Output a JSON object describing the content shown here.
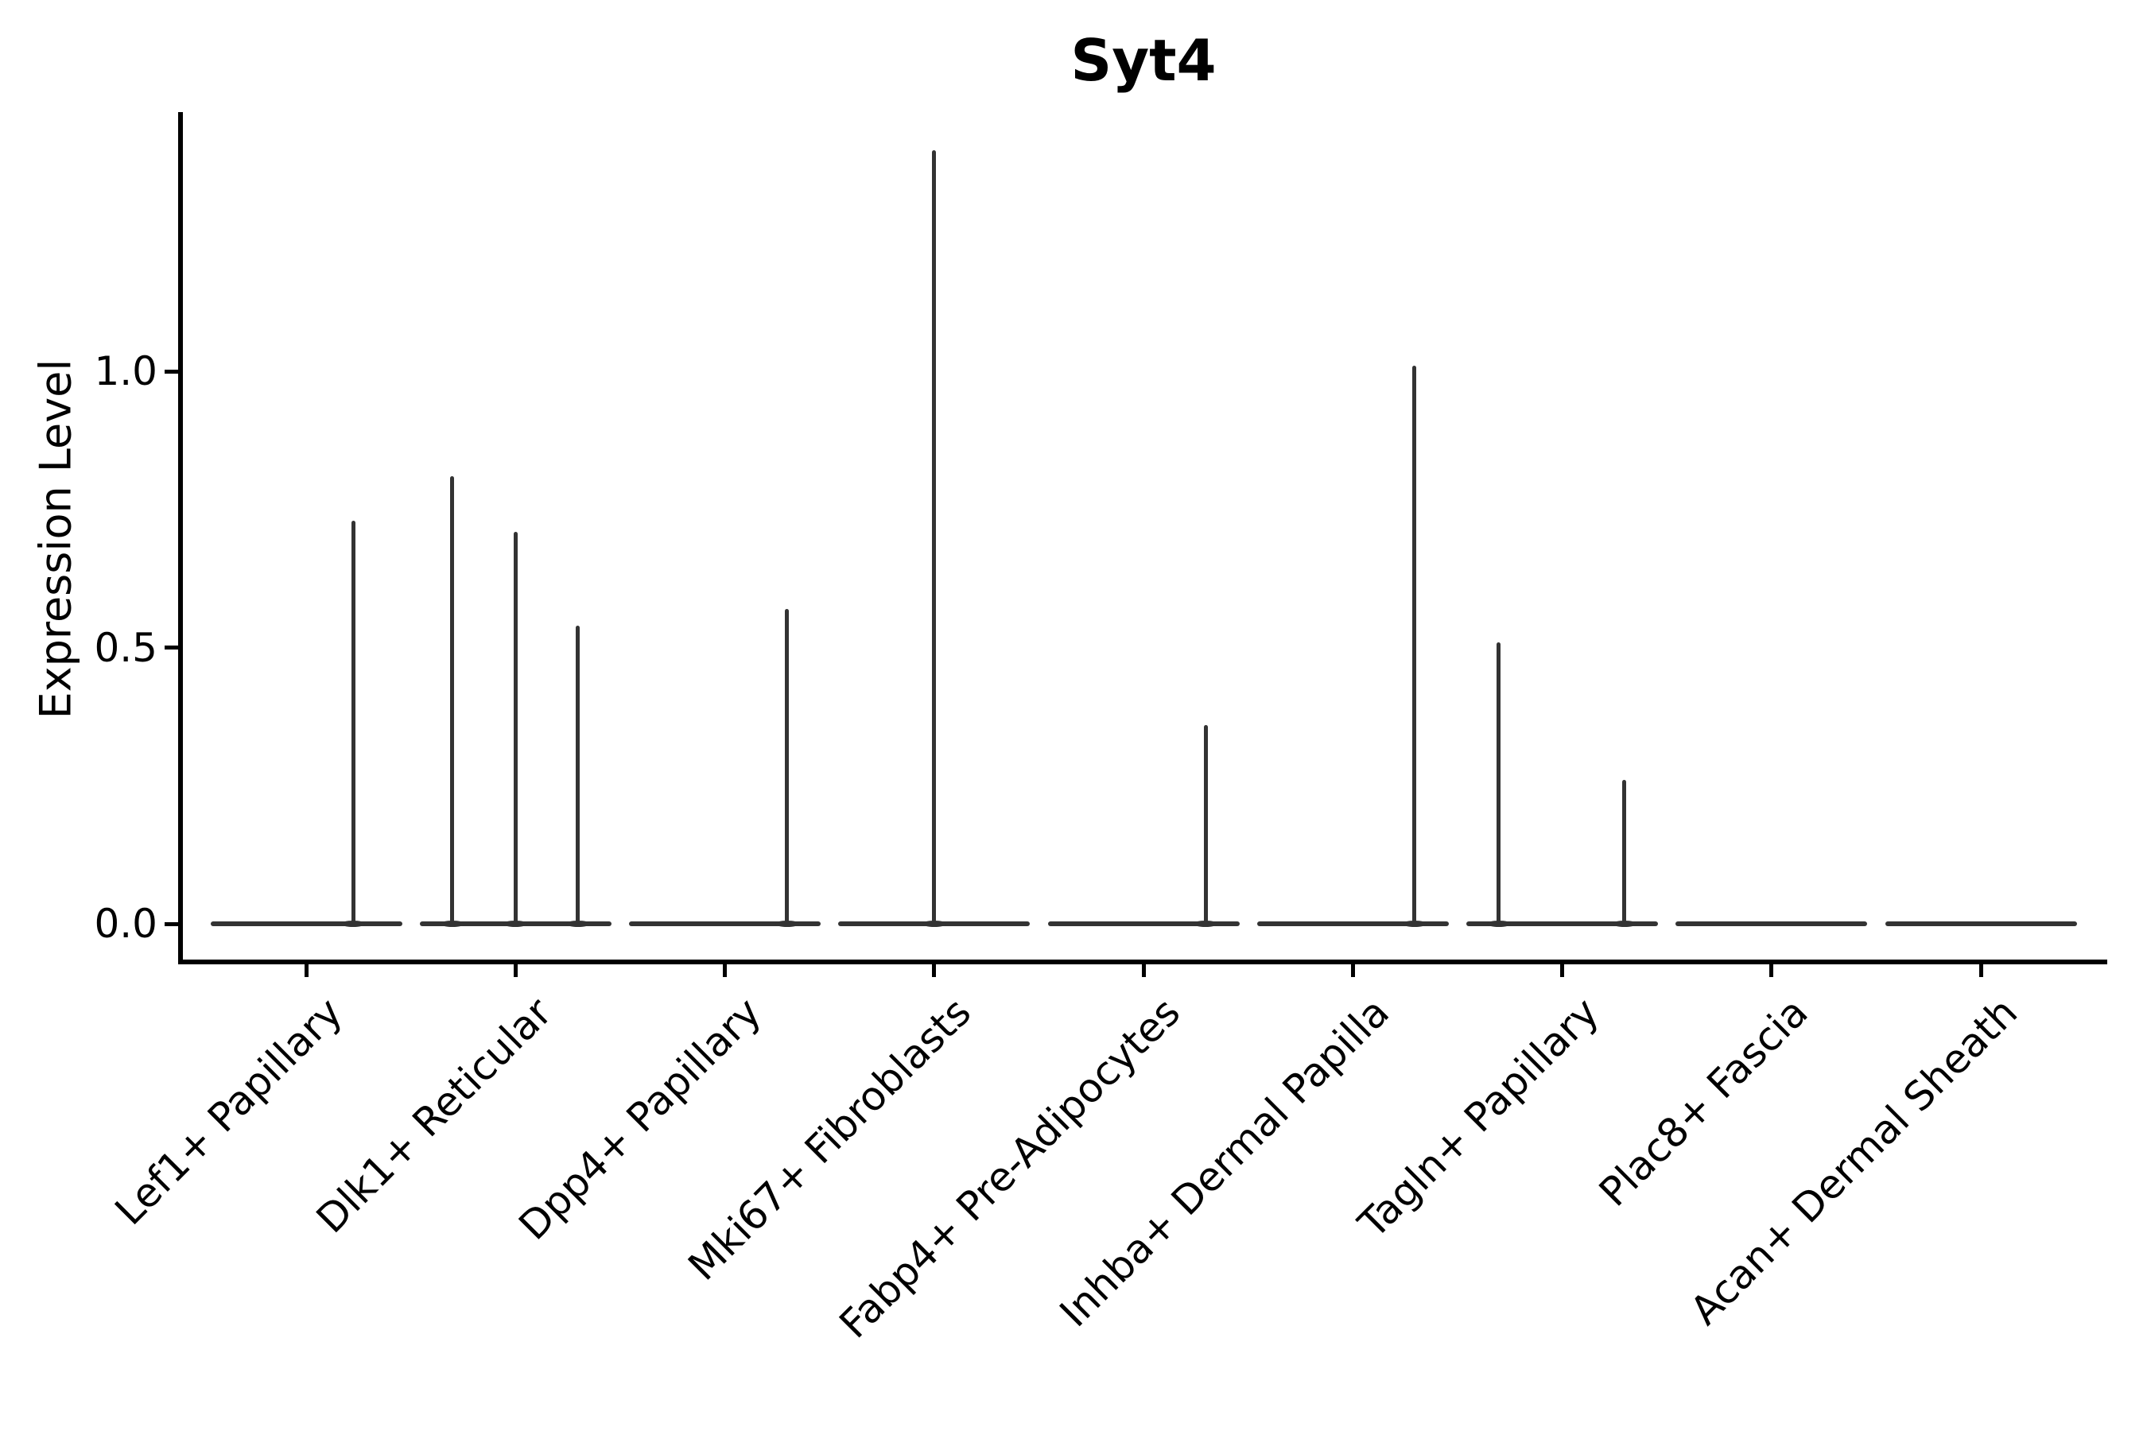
{
  "figure": {
    "background_color": "#ffffff",
    "spine_color": "#000000",
    "text_color": "#000000",
    "violin_line_color": "#333333"
  },
  "chart_data": {
    "type": "violin",
    "title": "Syt4",
    "xlabel": "",
    "ylabel": "Expression Level",
    "yticks": [
      "0.0",
      "0.5",
      "1.0"
    ],
    "ylim": [
      -0.07,
      1.47
    ],
    "grid": false,
    "legend": null,
    "categories": [
      "Lef1+ Papillary",
      "Dlk1+ Reticular",
      "Dpp4+ Papillary",
      "Mki67+ Fibroblasts",
      "Fabp4+ Pre-Adipocytes",
      "Inhba+ Dermal Papilla",
      "Tagln+ Papillary",
      "Plac8+ Fascia",
      "Acan+ Dermal Sheath"
    ],
    "violins": [
      {
        "category": "Lef1+ Papillary",
        "max_expression": 0.73,
        "spikes": [
          {
            "offset": 0.49,
            "value": 0.73
          }
        ]
      },
      {
        "category": "Dlk1+ Reticular",
        "max_expression": 0.81,
        "spikes": [
          {
            "offset": -0.66,
            "value": 0.81
          },
          {
            "offset": 0.0,
            "value": 0.71
          },
          {
            "offset": 0.65,
            "value": 0.54
          }
        ]
      },
      {
        "category": "Dpp4+ Papillary",
        "max_expression": 0.57,
        "spikes": [
          {
            "offset": 0.65,
            "value": 0.57
          }
        ]
      },
      {
        "category": "Mki67+ Fibroblasts",
        "max_expression": 1.4,
        "spikes": [
          {
            "offset": 0.0,
            "value": 1.4
          }
        ]
      },
      {
        "category": "Fabp4+ Pre-Adipocytes",
        "max_expression": 0.36,
        "spikes": [
          {
            "offset": 0.65,
            "value": 0.36
          }
        ]
      },
      {
        "category": "Inhba+ Dermal Papilla",
        "max_expression": 1.01,
        "spikes": [
          {
            "offset": 0.645,
            "value": 1.01
          }
        ]
      },
      {
        "category": "Tagln+ Papillary",
        "max_expression": 0.51,
        "spikes": [
          {
            "offset": -0.66,
            "value": 0.51
          },
          {
            "offset": 0.65,
            "value": 0.26
          }
        ]
      },
      {
        "category": "Plac8+ Fascia",
        "max_expression": 0.0,
        "spikes": []
      },
      {
        "category": "Acan+ Dermal Sheath",
        "max_expression": 0.0,
        "spikes": []
      }
    ]
  }
}
